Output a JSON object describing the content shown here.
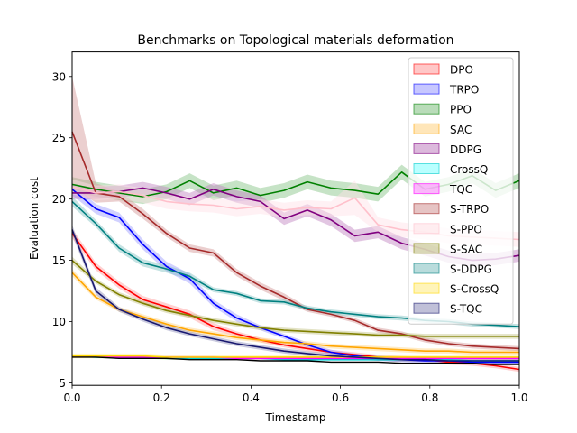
{
  "chart_data": {
    "type": "line",
    "title": "Benchmarks on Topological materials deformation",
    "xlabel": "Timestamp",
    "ylabel": "Evaluation cost",
    "xlim": [
      0,
      1
    ],
    "ylim": [
      4.8,
      32
    ],
    "xticks": [
      0.0,
      0.2,
      0.4,
      0.6,
      0.8,
      1.0
    ],
    "xtick_labels": [
      "0.0",
      "0.2",
      "0.4",
      "0.6",
      "0.8",
      "1.0"
    ],
    "yticks": [
      5,
      10,
      15,
      20,
      25,
      30
    ],
    "ytick_labels": [
      "5",
      "10",
      "15",
      "20",
      "25",
      "30"
    ],
    "grid": false,
    "legend_position": "top-right",
    "x": [
      0,
      0.053,
      0.105,
      0.158,
      0.211,
      0.263,
      0.316,
      0.368,
      0.421,
      0.474,
      0.526,
      0.579,
      0.632,
      0.684,
      0.737,
      0.789,
      0.842,
      0.895,
      0.947,
      1.0
    ],
    "series": [
      {
        "name": "DPO",
        "line_color": "#ff0000",
        "fill_color": "#ff9999",
        "values": [
          17.2,
          14.5,
          13.0,
          11.8,
          11.2,
          10.6,
          9.6,
          9.0,
          8.5,
          8.1,
          7.8,
          7.5,
          7.3,
          7.1,
          7.0,
          6.9,
          6.7,
          6.6,
          6.4,
          6.1
        ],
        "band": [
          0.4,
          0.3,
          0.3,
          0.3,
          0.3,
          0.3,
          0.3,
          0.2,
          0.2,
          0.2,
          0.2,
          0.2,
          0.2,
          0.2,
          0.2,
          0.2,
          0.2,
          0.2,
          0.2,
          0.2
        ]
      },
      {
        "name": "TRPO",
        "line_color": "#0000ff",
        "fill_color": "#9999ff",
        "values": [
          20.8,
          19.2,
          18.5,
          16.3,
          14.5,
          13.5,
          11.5,
          10.3,
          9.5,
          8.8,
          8.1,
          7.5,
          7.2,
          7.0,
          6.9,
          6.8,
          6.8,
          6.7,
          6.7,
          6.7
        ],
        "band": [
          0.5,
          0.4,
          0.4,
          0.4,
          0.4,
          0.4,
          0.3,
          0.3,
          0.2,
          0.2,
          0.2,
          0.2,
          0.2,
          0.2,
          0.2,
          0.2,
          0.2,
          0.2,
          0.2,
          0.2
        ]
      },
      {
        "name": "PPO",
        "line_color": "#008000",
        "fill_color": "#80c080",
        "values": [
          21.2,
          20.8,
          20.5,
          20.2,
          20.6,
          21.5,
          20.5,
          20.9,
          20.3,
          20.7,
          21.4,
          20.9,
          20.7,
          20.4,
          22.2,
          20.8,
          21.2,
          21.9,
          20.7,
          21.5
        ],
        "band": [
          0.6,
          0.6,
          0.6,
          0.6,
          0.6,
          0.6,
          0.6,
          0.6,
          0.6,
          0.6,
          0.6,
          0.6,
          0.6,
          0.6,
          0.6,
          0.6,
          0.6,
          0.6,
          0.6,
          0.6
        ]
      },
      {
        "name": "SAC",
        "line_color": "#ffa500",
        "fill_color": "#ffd27f",
        "values": [
          14.0,
          12.0,
          11.0,
          10.4,
          9.8,
          9.3,
          9.0,
          8.7,
          8.5,
          8.3,
          8.2,
          8.0,
          7.9,
          7.8,
          7.7,
          7.6,
          7.6,
          7.5,
          7.5,
          7.5
        ],
        "band": [
          0.3,
          0.2,
          0.2,
          0.2,
          0.2,
          0.2,
          0.2,
          0.2,
          0.2,
          0.2,
          0.2,
          0.2,
          0.2,
          0.2,
          0.2,
          0.2,
          0.2,
          0.2,
          0.2,
          0.2
        ]
      },
      {
        "name": "DDPG",
        "line_color": "#800080",
        "fill_color": "#bf80bf",
        "values": [
          20.5,
          20.5,
          20.6,
          20.9,
          20.5,
          20.0,
          20.8,
          20.2,
          19.8,
          18.4,
          19.1,
          18.3,
          17.0,
          17.3,
          16.4,
          15.9,
          15.3,
          15.0,
          15.1,
          15.4
        ],
        "band": [
          0.5,
          0.5,
          0.5,
          0.5,
          0.5,
          0.5,
          0.5,
          0.5,
          0.5,
          0.5,
          0.5,
          0.5,
          0.5,
          0.5,
          0.5,
          0.5,
          0.5,
          0.5,
          0.5,
          0.5
        ]
      },
      {
        "name": "CrossQ",
        "line_color": "#00cccc",
        "fill_color": "#80ffff",
        "values": [
          7.2,
          7.1,
          7.1,
          7.1,
          7.0,
          7.0,
          7.0,
          7.0,
          7.0,
          6.9,
          6.9,
          6.9,
          6.9,
          6.9,
          6.9,
          6.9,
          6.9,
          6.8,
          6.8,
          6.8
        ],
        "band": [
          0.1,
          0.1,
          0.1,
          0.1,
          0.1,
          0.1,
          0.1,
          0.1,
          0.1,
          0.1,
          0.1,
          0.1,
          0.1,
          0.1,
          0.1,
          0.1,
          0.1,
          0.1,
          0.1,
          0.1
        ]
      },
      {
        "name": "TQC",
        "line_color": "#ff00ff",
        "fill_color": "#ff80ff",
        "values": [
          7.2,
          7.2,
          7.1,
          7.1,
          7.1,
          7.1,
          7.1,
          7.0,
          7.0,
          7.0,
          7.0,
          7.0,
          7.0,
          7.0,
          7.0,
          7.0,
          7.0,
          7.0,
          7.0,
          7.0
        ],
        "band": [
          0.1,
          0.1,
          0.1,
          0.1,
          0.1,
          0.1,
          0.1,
          0.1,
          0.1,
          0.1,
          0.1,
          0.1,
          0.1,
          0.1,
          0.1,
          0.1,
          0.1,
          0.1,
          0.1,
          0.1
        ]
      },
      {
        "name": "S-TRPO",
        "line_color": "#a52a2a",
        "fill_color": "#d29494",
        "values": [
          25.5,
          20.5,
          20.2,
          18.8,
          17.2,
          16.0,
          15.6,
          14.0,
          12.9,
          12.0,
          11.0,
          10.6,
          10.1,
          9.3,
          9.0,
          8.5,
          8.2,
          8.0,
          7.9,
          7.8
        ],
        "band": [
          4.5,
          0.8,
          0.4,
          0.4,
          0.3,
          0.3,
          0.3,
          0.3,
          0.3,
          0.3,
          0.2,
          0.2,
          0.2,
          0.2,
          0.2,
          0.2,
          0.2,
          0.2,
          0.2,
          0.2
        ]
      },
      {
        "name": "S-PPO",
        "line_color": "#ffc0cb",
        "fill_color": "#ffe0e6",
        "values": [
          21.0,
          20.5,
          20.6,
          20.3,
          19.8,
          19.6,
          19.5,
          19.2,
          19.4,
          19.1,
          19.3,
          19.2,
          20.1,
          17.9,
          17.5,
          17.3,
          17.0,
          16.9,
          16.8,
          16.7
        ],
        "band": [
          0.6,
          0.6,
          0.6,
          0.6,
          0.6,
          0.6,
          0.6,
          0.6,
          0.6,
          0.6,
          0.6,
          0.6,
          1.4,
          0.6,
          0.6,
          0.6,
          0.6,
          0.6,
          0.6,
          0.6
        ]
      },
      {
        "name": "S-SAC",
        "line_color": "#808000",
        "fill_color": "#c0c080",
        "values": [
          15.0,
          13.3,
          12.2,
          11.5,
          10.9,
          10.5,
          10.1,
          9.8,
          9.5,
          9.3,
          9.2,
          9.1,
          9.0,
          8.9,
          8.9,
          8.8,
          8.8,
          8.8,
          8.8,
          8.8
        ],
        "band": [
          0.3,
          0.2,
          0.2,
          0.2,
          0.2,
          0.2,
          0.2,
          0.2,
          0.2,
          0.2,
          0.2,
          0.2,
          0.2,
          0.2,
          0.2,
          0.2,
          0.2,
          0.2,
          0.2,
          0.2
        ]
      },
      {
        "name": "S-DDPG",
        "line_color": "#008080",
        "fill_color": "#80c0c0",
        "values": [
          19.8,
          18.0,
          16.0,
          14.8,
          14.3,
          13.7,
          12.6,
          12.3,
          11.7,
          11.6,
          11.1,
          10.8,
          10.6,
          10.4,
          10.3,
          10.1,
          10.0,
          9.8,
          9.7,
          9.6
        ],
        "band": [
          0.4,
          0.3,
          0.3,
          0.3,
          0.3,
          0.3,
          0.2,
          0.2,
          0.2,
          0.2,
          0.2,
          0.2,
          0.2,
          0.2,
          0.2,
          0.2,
          0.2,
          0.2,
          0.2,
          0.2
        ]
      },
      {
        "name": "S-CrossQ",
        "line_color": "#ffd700",
        "fill_color": "#ffeb80",
        "values": [
          7.2,
          7.2,
          7.2,
          7.2,
          7.1,
          7.1,
          7.1,
          7.1,
          7.1,
          7.1,
          7.1,
          7.1,
          7.1,
          7.1,
          7.1,
          7.1,
          7.1,
          7.1,
          7.1,
          7.1
        ],
        "band": [
          0.2,
          0.2,
          0.2,
          0.2,
          0.2,
          0.2,
          0.2,
          0.2,
          0.2,
          0.2,
          0.2,
          0.2,
          0.2,
          0.2,
          0.2,
          0.2,
          0.2,
          0.2,
          0.2,
          0.2
        ]
      },
      {
        "name": "S-TQC",
        "line_color": "#191970",
        "fill_color": "#8c8cb8",
        "values": [
          17.5,
          12.5,
          11.0,
          10.2,
          9.5,
          9.0,
          8.6,
          8.2,
          7.9,
          7.6,
          7.4,
          7.2,
          7.1,
          7.0,
          6.9,
          6.9,
          6.8,
          6.8,
          6.8,
          6.8
        ],
        "band": [
          0.4,
          0.3,
          0.2,
          0.2,
          0.2,
          0.2,
          0.2,
          0.2,
          0.2,
          0.2,
          0.2,
          0.2,
          0.2,
          0.2,
          0.2,
          0.2,
          0.2,
          0.2,
          0.2,
          0.2
        ]
      }
    ],
    "extra_lines": [
      {
        "line_color": "#000000",
        "values": [
          7.1,
          7.1,
          7.0,
          7.0,
          7.0,
          6.9,
          6.9,
          6.9,
          6.8,
          6.8,
          6.8,
          6.7,
          6.7,
          6.7,
          6.6,
          6.6,
          6.6,
          6.6,
          6.5,
          6.5
        ]
      }
    ]
  }
}
